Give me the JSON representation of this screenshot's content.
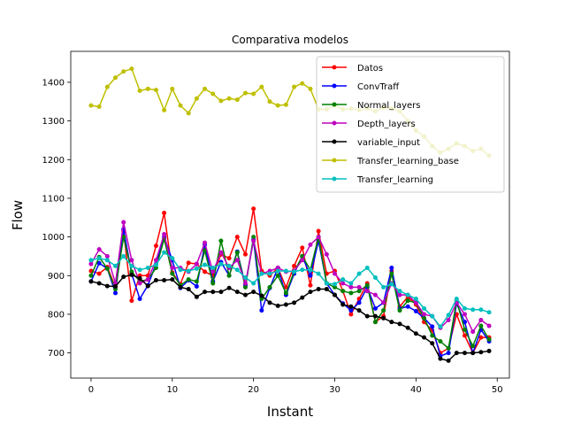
{
  "chart_data": {
    "type": "line",
    "title": "Comparativa modelos",
    "xlabel": "Instant",
    "ylabel": "Flow",
    "xlim": [
      -2.5,
      51.5
    ],
    "ylim": [
      635,
      1480
    ],
    "xticks": [
      "0",
      "10",
      "20",
      "30",
      "40",
      "50"
    ],
    "yticks": [
      "700",
      "800",
      "900",
      "1000",
      "1100",
      "1200",
      "1300",
      "1400"
    ],
    "grid": false,
    "legend_position": "top-right",
    "x": [
      0,
      1,
      2,
      3,
      4,
      5,
      6,
      7,
      8,
      9,
      10,
      11,
      12,
      13,
      14,
      15,
      16,
      17,
      18,
      19,
      20,
      21,
      22,
      23,
      24,
      25,
      26,
      27,
      28,
      29,
      30,
      31,
      32,
      33,
      34,
      35,
      36,
      37,
      38,
      39,
      40,
      41,
      42,
      43,
      44,
      45,
      46,
      47,
      48,
      49
    ],
    "series": [
      {
        "name": "Datos",
        "color": "#ff0000",
        "values": [
          912,
          905,
          922,
          870,
          1015,
          835,
          900,
          900,
          977,
          1062,
          908,
          878,
          933,
          930,
          910,
          900,
          955,
          945,
          1000,
          955,
          1073,
          912,
          900,
          920,
          870,
          925,
          972,
          875,
          1015,
          905,
          912,
          860,
          800,
          840,
          880,
          780,
          795,
          912,
          820,
          845,
          825,
          780,
          758,
          700,
          712,
          800,
          745,
          700,
          740,
          740
        ]
      },
      {
        "name": "ConvTraff",
        "color": "#0000ff",
        "values": [
          885,
          932,
          918,
          855,
          1020,
          905,
          840,
          875,
          930,
          1000,
          940,
          868,
          888,
          872,
          980,
          885,
          935,
          900,
          962,
          875,
          993,
          810,
          868,
          920,
          850,
          905,
          950,
          900,
          990,
          880,
          850,
          828,
          810,
          830,
          870,
          815,
          830,
          920,
          815,
          820,
          808,
          790,
          768,
          692,
          700,
          828,
          780,
          700,
          760,
          730
        ]
      },
      {
        "name": "Normal_layers",
        "color": "#008000",
        "values": [
          900,
          948,
          918,
          865,
          1000,
          910,
          885,
          890,
          920,
          995,
          905,
          875,
          890,
          885,
          965,
          880,
          990,
          900,
          960,
          870,
          1000,
          840,
          870,
          900,
          855,
          910,
          950,
          915,
          1000,
          880,
          870,
          860,
          855,
          860,
          875,
          780,
          810,
          905,
          810,
          835,
          830,
          790,
          745,
          730,
          712,
          835,
          760,
          718,
          770,
          735
        ]
      },
      {
        "name": "Depth_layers",
        "color": "#bf00bf",
        "values": [
          930,
          968,
          950,
          880,
          1038,
          940,
          880,
          890,
          940,
          1007,
          920,
          920,
          910,
          930,
          985,
          910,
          960,
          920,
          940,
          880,
          990,
          905,
          912,
          920,
          910,
          912,
          940,
          980,
          1000,
          955,
          905,
          880,
          870,
          870,
          860,
          850,
          830,
          880,
          850,
          850,
          830,
          800,
          795,
          765,
          785,
          830,
          800,
          755,
          785,
          770
        ]
      },
      {
        "name": "variable_input",
        "color": "#000000",
        "values": [
          885,
          880,
          873,
          872,
          897,
          902,
          893,
          873,
          888,
          888,
          890,
          870,
          865,
          845,
          858,
          858,
          858,
          868,
          858,
          850,
          858,
          848,
          830,
          822,
          825,
          830,
          843,
          858,
          865,
          865,
          850,
          825,
          820,
          810,
          795,
          795,
          790,
          780,
          775,
          765,
          750,
          740,
          725,
          685,
          680,
          700,
          700,
          700,
          702,
          705
        ]
      },
      {
        "name": "Transfer_learning_base",
        "color": "#bfbf00",
        "values": [
          1340,
          1337,
          1388,
          1412,
          1428,
          1435,
          1378,
          1383,
          1380,
          1328,
          1383,
          1340,
          1320,
          1358,
          1383,
          1370,
          1352,
          1358,
          1355,
          1372,
          1370,
          1388,
          1350,
          1340,
          1342,
          1388,
          1397,
          1383,
          1330,
          1330,
          1340,
          1330,
          1332,
          1328,
          1332,
          1325,
          1335,
          1333,
          1325,
          1300,
          1275,
          1260,
          1235,
          1218,
          1228,
          1242,
          1235,
          1222,
          1228,
          1210
        ]
      },
      {
        "name": "Transfer_learning",
        "color": "#00bfbf",
        "values": [
          940,
          945,
          940,
          925,
          950,
          925,
          915,
          920,
          928,
          960,
          945,
          915,
          912,
          918,
          928,
          920,
          930,
          925,
          915,
          895,
          880,
          905,
          905,
          912,
          912,
          910,
          915,
          915,
          905,
          880,
          878,
          890,
          880,
          905,
          920,
          895,
          870,
          878,
          860,
          850,
          840,
          815,
          795,
          768,
          798,
          840,
          815,
          812,
          812,
          805
        ]
      }
    ]
  }
}
